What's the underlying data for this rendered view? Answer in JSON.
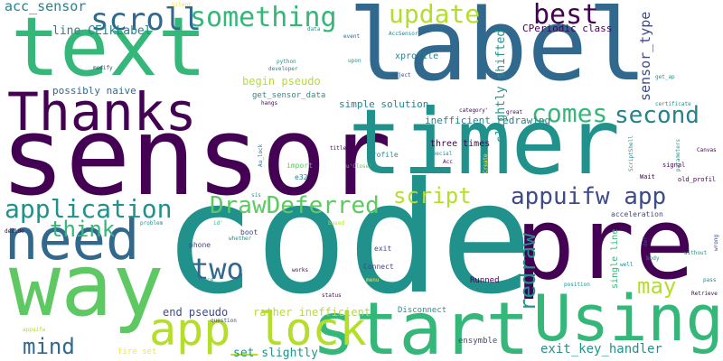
{
  "palette": {
    "navy": "#440154",
    "blue": "#31688e",
    "slate": "#3e4a89",
    "teal": "#21918c",
    "sea": "#26828e",
    "green": "#35b779",
    "lime": "#5ec962",
    "yellow": "#b5de2b",
    "gold": "#fde725",
    "background": "#ffffff"
  },
  "words": [
    {
      "t": "code",
      "c": "teal"
    },
    {
      "t": "sensor",
      "c": "navy"
    },
    {
      "t": "label",
      "c": "blue"
    },
    {
      "t": "timer",
      "c": "teal"
    },
    {
      "t": "pre",
      "c": "navy"
    },
    {
      "t": "text",
      "c": "green"
    },
    {
      "t": "way",
      "c": "lime"
    },
    {
      "t": "Using",
      "c": "green"
    },
    {
      "t": "start",
      "c": "green"
    },
    {
      "t": "Thanks",
      "c": "navy"
    },
    {
      "t": "need",
      "c": "blue"
    },
    {
      "t": "app_lock",
      "c": "yellow"
    },
    {
      "t": "two",
      "c": "blue"
    },
    {
      "t": "scroll",
      "c": "blue"
    },
    {
      "t": "something",
      "c": "green"
    },
    {
      "t": "update",
      "c": "yellow"
    },
    {
      "t": "best",
      "c": "navy"
    },
    {
      "t": "comes",
      "c": "green"
    },
    {
      "t": "second",
      "c": "sea"
    },
    {
      "t": "application",
      "c": "teal"
    },
    {
      "t": "DrawDeferred",
      "c": "lime"
    },
    {
      "t": "appuifw app",
      "c": "slate"
    },
    {
      "t": "script",
      "c": "yellow"
    },
    {
      "t": "think",
      "c": "green"
    },
    {
      "t": "mind",
      "c": "blue"
    },
    {
      "t": "may",
      "c": "yellow"
    },
    {
      "t": "redraw",
      "c": "teal"
    },
    {
      "t": "acc_sensor",
      "c": "sea"
    },
    {
      "t": "sensor_type",
      "c": "slate"
    },
    {
      "t": "line CEikLabel",
      "c": "sea"
    },
    {
      "t": "exit_key_handler",
      "c": "teal"
    },
    {
      "t": "set slightly",
      "c": "teal"
    },
    {
      "t": "end pseudo",
      "c": "slate"
    },
    {
      "t": "rather inefficient",
      "c": "yellow"
    },
    {
      "t": "slightly shifted",
      "c": "teal"
    },
    {
      "t": "begin pseudo",
      "c": "yellow"
    },
    {
      "t": "simple solution",
      "c": "sea"
    },
    {
      "t": "inefficient redrawing",
      "c": "sea"
    },
    {
      "t": "possibly naive",
      "c": "blue"
    },
    {
      "t": "xprofile",
      "c": "sea"
    },
    {
      "t": "CPeriodic class",
      "c": "navy"
    },
    {
      "t": "get_sensor_data",
      "c": "teal"
    },
    {
      "t": "three times",
      "c": "navy"
    },
    {
      "t": "single line",
      "c": "green"
    },
    {
      "t": "Disconnect",
      "c": "teal"
    },
    {
      "t": "Runned",
      "c": "navy"
    },
    {
      "t": "ensymble",
      "c": "slate"
    },
    {
      "t": "fire set",
      "c": "gold"
    },
    {
      "t": "Connect",
      "c": "slate"
    },
    {
      "t": "profile",
      "c": "teal"
    },
    {
      "t": "acceleration",
      "c": "slate"
    },
    {
      "t": "boot",
      "c": "slate"
    },
    {
      "t": "phone",
      "c": "slate"
    },
    {
      "t": "exit",
      "c": "slate"
    },
    {
      "t": "e32",
      "c": "sea"
    },
    {
      "t": "import",
      "c": "lime"
    },
    {
      "t": "signal",
      "c": "navy"
    },
    {
      "t": "developer",
      "c": "sea"
    },
    {
      "t": "python",
      "c": "teal"
    },
    {
      "t": "hangs",
      "c": "navy"
    },
    {
      "t": "modify",
      "c": "slate"
    },
    {
      "t": "object",
      "c": "slate"
    },
    {
      "t": "upon",
      "c": "teal"
    },
    {
      "t": "event",
      "c": "blue"
    },
    {
      "t": "AccSensor'",
      "c": "sea"
    },
    {
      "t": "data",
      "c": "teal"
    },
    {
      "t": "Silent",
      "c": "gold"
    },
    {
      "t": "certificate",
      "c": "teal"
    },
    {
      "t": "get_ap",
      "c": "teal"
    },
    {
      "t": "Canvas",
      "c": "navy"
    },
    {
      "t": "old_profil",
      "c": "navy"
    },
    {
      "t": "parameters",
      "c": "teal"
    },
    {
      "t": "Wait",
      "c": "navy"
    },
    {
      "t": "ScriptShell",
      "c": "teal"
    },
    {
      "t": "Create",
      "c": "gold"
    },
    {
      "t": "special",
      "c": "teal"
    },
    {
      "t": "Acc",
      "c": "navy"
    },
    {
      "t": "title",
      "c": "navy"
    },
    {
      "t": "u'Close'",
      "c": "lime"
    },
    {
      "t": "category'",
      "c": "navy"
    },
    {
      "t": "great",
      "c": "navy"
    },
    {
      "t": "Au_lock",
      "c": "blue"
    },
    {
      "t": "sis",
      "c": "teal"
    },
    {
      "t": "id'",
      "c": "green"
    },
    {
      "t": "based",
      "c": "yellow"
    },
    {
      "t": "problem",
      "c": "teal"
    },
    {
      "t": "decide",
      "c": "navy"
    },
    {
      "t": "whether",
      "c": "teal"
    },
    {
      "t": "def",
      "c": "slate"
    },
    {
      "t": "body",
      "c": "teal"
    },
    {
      "t": "without",
      "c": "teal"
    },
    {
      "t": "wrong",
      "c": "slate"
    },
    {
      "t": "well",
      "c": "sea"
    },
    {
      "t": "works",
      "c": "navy"
    },
    {
      "t": "advance",
      "c": "teal"
    },
    {
      "t": "made",
      "c": "teal"
    },
    {
      "t": "menu",
      "c": "gold"
    },
    {
      "t": "position",
      "c": "teal"
    },
    {
      "t": "pass",
      "c": "sea"
    },
    {
      "t": "Retrieve",
      "c": "navy"
    },
    {
      "t": "status",
      "c": "navy"
    },
    {
      "t": "question",
      "c": "slate"
    },
    {
      "t": "appuifw",
      "c": "yellow"
    }
  ]
}
